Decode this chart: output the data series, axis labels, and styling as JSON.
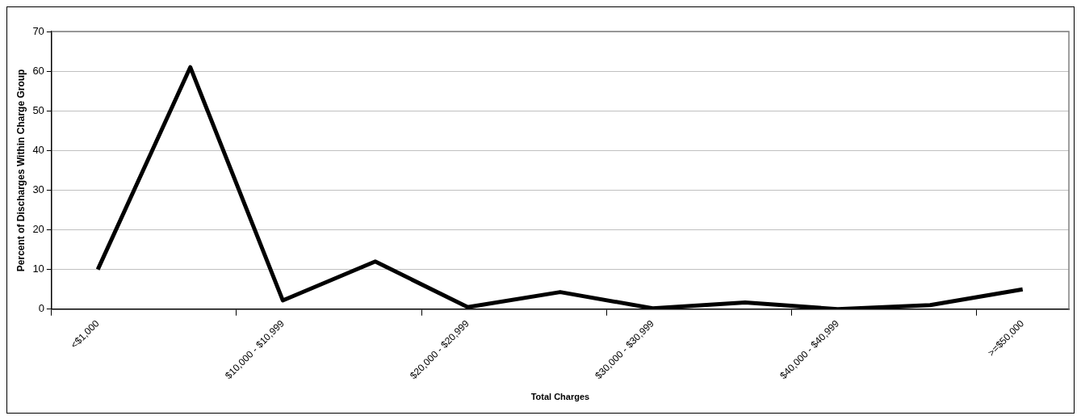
{
  "chart_data": {
    "type": "line",
    "xlabel": "Total Charges",
    "ylabel": "Percent of Discharges Within Charge Group",
    "categories": [
      "<$1,000",
      null,
      "$10,000 - $10,999",
      null,
      "$20,000 - $20,999",
      null,
      "$30,000 - $30,999",
      null,
      "$40,000 - $40,999",
      null,
      ">=$50,000"
    ],
    "series": [
      {
        "color": "#000000",
        "values": [
          10,
          61,
          2.2,
          12,
          0.5,
          4.3,
          0.2,
          1.7,
          0,
          1,
          5
        ]
      }
    ],
    "ylim": [
      0,
      70
    ],
    "yticks": [
      0,
      10,
      20,
      30,
      40,
      50,
      60,
      70
    ],
    "grid": "y",
    "legend": false,
    "marker": "none",
    "line_style": "solid"
  }
}
